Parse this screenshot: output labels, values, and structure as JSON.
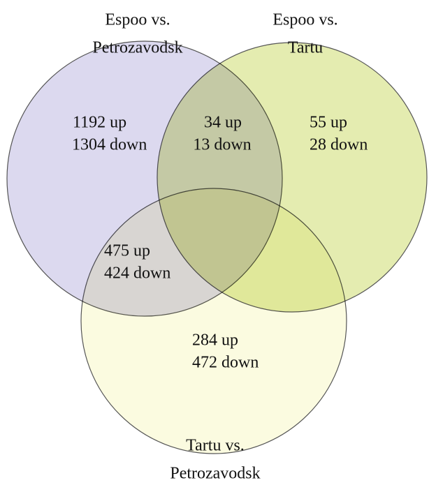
{
  "sets": [
    {
      "label": [
        "Espoo vs.",
        "Petrozavodsk"
      ]
    },
    {
      "label": [
        "Espoo vs.",
        "Tartu"
      ]
    },
    {
      "label": [
        "Tartu vs.",
        "Petrozavodsk"
      ]
    }
  ],
  "regions": [
    {
      "lines": [
        "1192 up",
        "1304 down"
      ]
    },
    {
      "lines": [
        "34 up",
        "13 down"
      ]
    },
    {
      "lines": [
        "55 up",
        "28 down"
      ]
    },
    {
      "lines": [
        "475 up",
        "424 down"
      ]
    },
    {
      "lines": [
        "284 up",
        "472 down"
      ]
    }
  ]
}
